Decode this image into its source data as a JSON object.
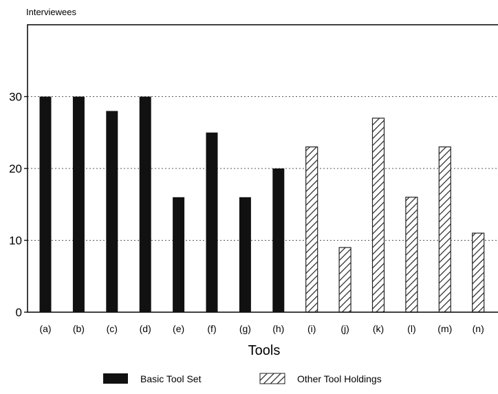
{
  "chart_data": {
    "type": "bar",
    "ylabel": "Interviewees",
    "xlabel": "Tools",
    "ylim": [
      0,
      40
    ],
    "yticks": [
      0,
      10,
      20,
      30
    ],
    "grid": "dotted horizontal lines at 10, 20, 30",
    "legend_placement": "bottom",
    "categories": [
      "(a)",
      "(b)",
      "(c)",
      "(d)",
      "(e)",
      "(f)",
      "(g)",
      "(h)",
      "(i)",
      "(j)",
      "(k)",
      "(l)",
      "(m)",
      "(n)"
    ],
    "series": [
      {
        "name": "Basic Tool Set",
        "style": "solid",
        "color": "#111111",
        "values": [
          30,
          30,
          28,
          30,
          16,
          25,
          16,
          20,
          null,
          null,
          null,
          null,
          null,
          null
        ]
      },
      {
        "name": "Other Tool Holdings",
        "style": "hatched",
        "color": "#222222",
        "values": [
          null,
          null,
          null,
          null,
          null,
          null,
          null,
          null,
          23,
          9,
          27,
          16,
          23,
          11
        ]
      }
    ]
  }
}
